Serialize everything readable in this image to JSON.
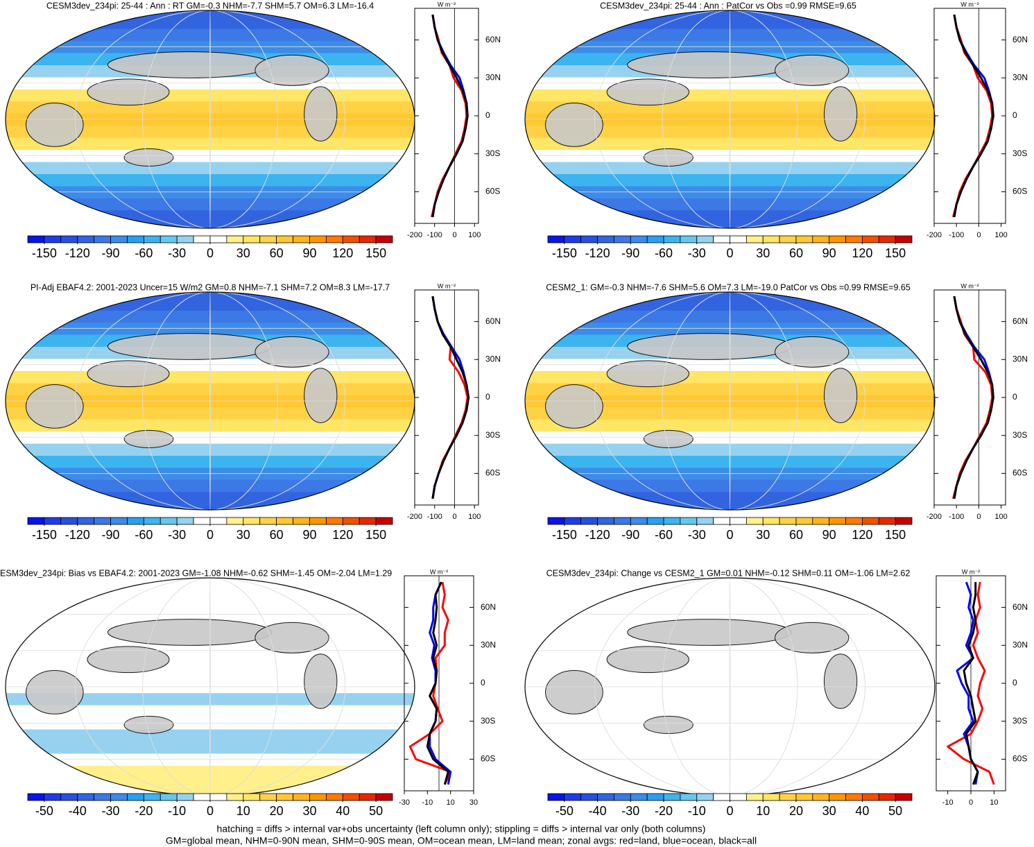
{
  "chart_data": [
    {
      "type": "map",
      "title": "CESM3dev_234pi: 25-44 : Ann : RT GM=-0.3 NHM=-7.7 SHM=5.7 OM=6.3 LM=-16.4",
      "clim": [
        -165,
        165
      ],
      "colorbar_ticks": [
        -150,
        -120,
        -90,
        -60,
        -30,
        0,
        30,
        60,
        90,
        120,
        150
      ],
      "colors": [
        "#0a14e6",
        "#1e3ce6",
        "#2850dc",
        "#3264e0",
        "#3c78e6",
        "#3c8ce8",
        "#28a0f0",
        "#3cb4f0",
        "#64c8f0",
        "#96d2f0",
        "#ffffff",
        "#ffffff",
        "#fff08c",
        "#ffe664",
        "#ffd246",
        "#ffc832",
        "#ffb41e",
        "#ff9600",
        "#ff7800",
        "#f05000",
        "#e62800",
        "#c80000"
      ],
      "xlabel": "W m⁻²",
      "xlim": [
        -200,
        120
      ],
      "xticks": [
        -200,
        -100,
        0,
        100
      ],
      "ylim": [
        -85,
        85
      ],
      "yticks": [
        {
          "value": -60,
          "label": "60S"
        },
        {
          "value": -30,
          "label": "30S"
        },
        0,
        {
          "value": 30,
          "label": "30N"
        },
        {
          "value": 60,
          "label": "60N"
        }
      ],
      "latitudes": [
        -80,
        -70,
        -60,
        -50,
        -40,
        -30,
        -20,
        -10,
        0,
        10,
        20,
        30,
        40,
        50,
        60,
        70,
        80
      ],
      "series": [
        {
          "color": "#ff0000",
          "values": [
            -115,
            -100,
            -85,
            -60,
            -25,
            5,
            35,
            50,
            60,
            55,
            35,
            -5,
            -25,
            -65,
            -80,
            -100,
            -110
          ]
        },
        {
          "color": "#0000ff",
          "values": [
            -110,
            -100,
            -80,
            -55,
            -25,
            10,
            40,
            55,
            65,
            60,
            45,
            25,
            -20,
            -55,
            -85,
            -100,
            -110
          ]
        },
        {
          "color": "#000000",
          "values": [
            -110,
            -100,
            -80,
            -55,
            -25,
            10,
            40,
            55,
            65,
            60,
            40,
            10,
            -25,
            -60,
            -85,
            -100,
            -110
          ]
        }
      ]
    },
    {
      "type": "map",
      "title": "CESM3dev_234pi: 25-44 : Ann : PatCor vs Obs =0.99 RMSE=9.65",
      "clim": [
        -165,
        165
      ],
      "colorbar_ticks": [
        -150,
        -120,
        -90,
        -60,
        -30,
        0,
        30,
        60,
        90,
        120,
        150
      ],
      "colors": [
        "#0a14e6",
        "#1e3ce6",
        "#2850dc",
        "#3264e0",
        "#3c78e6",
        "#3c8ce8",
        "#28a0f0",
        "#3cb4f0",
        "#64c8f0",
        "#96d2f0",
        "#ffffff",
        "#ffffff",
        "#fff08c",
        "#ffe664",
        "#ffd246",
        "#ffc832",
        "#ffb41e",
        "#ff9600",
        "#ff7800",
        "#f05000",
        "#e62800",
        "#c80000"
      ],
      "xlabel": "W m⁻²",
      "xlim": [
        -200,
        120
      ],
      "xticks": [
        -200,
        -100,
        0,
        100
      ],
      "ylim": [
        -85,
        85
      ],
      "yticks": [
        {
          "value": -60,
          "label": "60S"
        },
        {
          "value": -30,
          "label": "30S"
        },
        0,
        {
          "value": 30,
          "label": "30N"
        },
        {
          "value": 60,
          "label": "60N"
        }
      ],
      "latitudes": [
        -80,
        -70,
        -60,
        -50,
        -40,
        -30,
        -20,
        -10,
        0,
        10,
        20,
        30,
        40,
        50,
        60,
        70,
        80
      ],
      "series": [
        {
          "color": "#ff0000",
          "values": [
            -115,
            -100,
            -85,
            -60,
            -25,
            5,
            35,
            50,
            60,
            55,
            35,
            -5,
            -25,
            -65,
            -80,
            -100,
            -110
          ]
        },
        {
          "color": "#0000ff",
          "values": [
            -110,
            -100,
            -80,
            -55,
            -25,
            10,
            40,
            55,
            65,
            60,
            45,
            25,
            -20,
            -55,
            -85,
            -100,
            -110
          ]
        },
        {
          "color": "#000000",
          "values": [
            -110,
            -100,
            -80,
            -55,
            -25,
            10,
            40,
            55,
            65,
            60,
            40,
            10,
            -25,
            -60,
            -85,
            -100,
            -110
          ]
        }
      ]
    },
    {
      "type": "map",
      "title": "PI-Adj EBAF4.2: 2001-2023 Uncer=15 W/m2 GM=0.8 NHM=-7.1 SHM=7.2 OM=8.3 LM=-17.7",
      "clim": [
        -165,
        165
      ],
      "colorbar_ticks": [
        -150,
        -120,
        -90,
        -60,
        -30,
        0,
        30,
        60,
        90,
        120,
        150
      ],
      "colors": [
        "#0a14e6",
        "#1e3ce6",
        "#2850dc",
        "#3264e0",
        "#3c78e6",
        "#3c8ce8",
        "#28a0f0",
        "#3cb4f0",
        "#64c8f0",
        "#96d2f0",
        "#ffffff",
        "#ffffff",
        "#fff08c",
        "#ffe664",
        "#ffd246",
        "#ffc832",
        "#ffb41e",
        "#ff9600",
        "#ff7800",
        "#f05000",
        "#e62800",
        "#c80000"
      ],
      "xlabel": "W m⁻²",
      "xlim": [
        -200,
        120
      ],
      "xticks": [
        -200,
        -100,
        0,
        100
      ],
      "ylim": [
        -85,
        85
      ],
      "yticks": [
        {
          "value": -60,
          "label": "60S"
        },
        {
          "value": -30,
          "label": "30S"
        },
        0,
        {
          "value": 30,
          "label": "30N"
        },
        {
          "value": 60,
          "label": "60N"
        }
      ],
      "latitudes": [
        -80,
        -70,
        -60,
        -50,
        -40,
        -30,
        -20,
        -10,
        0,
        10,
        20,
        30,
        40,
        50,
        60,
        70,
        80
      ],
      "series": [
        {
          "color": "#ff0000",
          "values": [
            -110,
            -100,
            -80,
            -60,
            -25,
            5,
            35,
            55,
            65,
            50,
            20,
            -25,
            -20,
            -60,
            -85,
            -100,
            -110
          ]
        },
        {
          "color": "#0000ff",
          "values": [
            -110,
            -100,
            -80,
            -55,
            -25,
            10,
            40,
            60,
            70,
            60,
            45,
            25,
            -15,
            -55,
            -85,
            -100,
            -110
          ]
        },
        {
          "color": "#000000",
          "values": [
            -110,
            -100,
            -80,
            -55,
            -25,
            10,
            40,
            60,
            70,
            60,
            40,
            10,
            -20,
            -60,
            -85,
            -100,
            -110
          ]
        }
      ]
    },
    {
      "type": "map",
      "title": "CESM2_1: GM=-0.3 NHM=-7.6 SHM=5.6 OM=7.3 LM=-19.0 PatCor vs Obs =0.99 RMSE=9.65",
      "clim": [
        -165,
        165
      ],
      "colorbar_ticks": [
        -150,
        -120,
        -90,
        -60,
        -30,
        0,
        30,
        60,
        90,
        120,
        150
      ],
      "colors": [
        "#0a14e6",
        "#1e3ce6",
        "#2850dc",
        "#3264e0",
        "#3c78e6",
        "#3c8ce8",
        "#28a0f0",
        "#3cb4f0",
        "#64c8f0",
        "#96d2f0",
        "#ffffff",
        "#ffffff",
        "#fff08c",
        "#ffe664",
        "#ffd246",
        "#ffc832",
        "#ffb41e",
        "#ff9600",
        "#ff7800",
        "#f05000",
        "#e62800",
        "#c80000"
      ],
      "xlabel": "W m⁻²",
      "xlim": [
        -200,
        120
      ],
      "xticks": [
        -200,
        -100,
        0,
        100
      ],
      "ylim": [
        -85,
        85
      ],
      "yticks": [
        {
          "value": -60,
          "label": "60S"
        },
        {
          "value": -30,
          "label": "30S"
        },
        0,
        {
          "value": 30,
          "label": "30N"
        },
        {
          "value": 60,
          "label": "60N"
        }
      ],
      "latitudes": [
        -80,
        -70,
        -60,
        -50,
        -40,
        -30,
        -20,
        -10,
        0,
        10,
        20,
        30,
        40,
        50,
        60,
        70,
        80
      ],
      "series": [
        {
          "color": "#ff0000",
          "values": [
            -115,
            -100,
            -85,
            -60,
            -25,
            5,
            35,
            50,
            60,
            55,
            30,
            -20,
            -25,
            -65,
            -80,
            -100,
            -110
          ]
        },
        {
          "color": "#0000ff",
          "values": [
            -110,
            -100,
            -80,
            -55,
            -25,
            10,
            40,
            55,
            65,
            60,
            45,
            25,
            -20,
            -55,
            -85,
            -100,
            -110
          ]
        },
        {
          "color": "#000000",
          "values": [
            -110,
            -100,
            -80,
            -55,
            -25,
            10,
            40,
            55,
            65,
            60,
            40,
            10,
            -25,
            -60,
            -85,
            -100,
            -110
          ]
        }
      ]
    },
    {
      "type": "map",
      "title": "ESM3dev_234pi: Bias vs EBAF4.2: 2001-2023 GM=-1.08 NHM=-0.62 SHM=-1.45 OM=-2.04 LM=1.29",
      "clim": [
        -55,
        55
      ],
      "colorbar_ticks": [
        -50,
        -40,
        -30,
        -20,
        -10,
        0,
        10,
        20,
        30,
        40,
        50
      ],
      "colors": [
        "#0a14e6",
        "#1e3ce6",
        "#2850dc",
        "#3264e0",
        "#3c78e6",
        "#3c8ce8",
        "#28a0f0",
        "#3cb4f0",
        "#64c8f0",
        "#96d2f0",
        "#ffffff",
        "#ffffff",
        "#fff08c",
        "#ffe664",
        "#ffd246",
        "#ffc832",
        "#ffb41e",
        "#ff9600",
        "#ff7800",
        "#f05000",
        "#e62800",
        "#c80000"
      ],
      "xlabel": "W m⁻²",
      "xlim": [
        -30,
        30
      ],
      "xticks": [
        -30,
        -10,
        10,
        30
      ],
      "ylim": [
        -85,
        85
      ],
      "yticks": [
        {
          "value": -60,
          "label": "60S"
        },
        {
          "value": -30,
          "label": "30S"
        },
        0,
        {
          "value": 30,
          "label": "30N"
        },
        {
          "value": 60,
          "label": "60N"
        }
      ],
      "latitudes": [
        -80,
        -70,
        -60,
        -50,
        -40,
        -30,
        -20,
        -10,
        0,
        10,
        20,
        30,
        40,
        50,
        60,
        70,
        80
      ],
      "series": [
        {
          "color": "#ff0000",
          "values": [
            5,
            10,
            -20,
            -25,
            -8,
            3,
            -1,
            -5,
            -3,
            -2,
            -3,
            5,
            5,
            8,
            3,
            5,
            3
          ]
        },
        {
          "color": "#0000ff",
          "values": [
            8,
            10,
            -3,
            -8,
            -8,
            -3,
            -2,
            -8,
            -3,
            -3,
            -6,
            -4,
            -8,
            -5,
            -5,
            -3,
            2
          ]
        },
        {
          "color": "#000000",
          "values": [
            5,
            8,
            -5,
            -10,
            -8,
            -3,
            -2,
            -8,
            -3,
            -2,
            -5,
            -2,
            -5,
            -3,
            -2,
            -3,
            2
          ]
        }
      ]
    },
    {
      "type": "map",
      "title": "CESM3dev_234pi: Change vs CESM2_1 GM=0.01 NHM=-0.12 SHM=0.11 OM=-1.06 LM=2.62",
      "clim": [
        -55,
        55
      ],
      "colorbar_ticks": [
        -50,
        -40,
        -30,
        -20,
        -10,
        0,
        10,
        20,
        30,
        40,
        50
      ],
      "colors": [
        "#0a14e6",
        "#1e3ce6",
        "#2850dc",
        "#3264e0",
        "#3c78e6",
        "#3c8ce8",
        "#28a0f0",
        "#3cb4f0",
        "#64c8f0",
        "#96d2f0",
        "#ffffff",
        "#ffffff",
        "#fff08c",
        "#ffe664",
        "#ffd246",
        "#ffc832",
        "#ffb41e",
        "#ff9600",
        "#ff7800",
        "#f05000",
        "#e62800",
        "#c80000"
      ],
      "xlabel": "W m⁻²",
      "xlim": [
        -15,
        15
      ],
      "xticks": [
        -10,
        0,
        10
      ],
      "ylim": [
        -85,
        85
      ],
      "yticks": [
        {
          "value": -60,
          "label": "60S"
        },
        {
          "value": -30,
          "label": "30S"
        },
        0,
        {
          "value": 30,
          "label": "30N"
        },
        {
          "value": 60,
          "label": "60N"
        }
      ],
      "latitudes": [
        -80,
        -70,
        -60,
        -50,
        -40,
        -30,
        -20,
        -10,
        0,
        10,
        20,
        30,
        40,
        50,
        60,
        70,
        80
      ],
      "series": [
        {
          "color": "#ff0000",
          "values": [
            10,
            8,
            -3,
            -10,
            0,
            3,
            5,
            3,
            4,
            6,
            3,
            1,
            3,
            2,
            4,
            3,
            4
          ]
        },
        {
          "color": "#0000ff",
          "values": [
            2,
            3,
            0,
            -1,
            -3,
            1,
            -1,
            -1,
            -4,
            -6,
            1,
            -2,
            0,
            1,
            -1,
            0,
            -2
          ]
        },
        {
          "color": "#000000",
          "values": [
            1,
            3,
            0,
            -1,
            -2,
            2,
            1,
            0,
            -2,
            -3,
            1,
            -1,
            1,
            2,
            1,
            2,
            2
          ]
        }
      ]
    }
  ],
  "notes": [
    "hatching = diffs > internal var+obs uncertainty (left column only); stippling = diffs > internal var only (both columns)",
    "GM=global mean, NHM=0-90N mean, SHM=0-90S mean, OM=ocean mean, LM=land mean; zonal avgs: red=land, blue=ocean, black=all"
  ]
}
